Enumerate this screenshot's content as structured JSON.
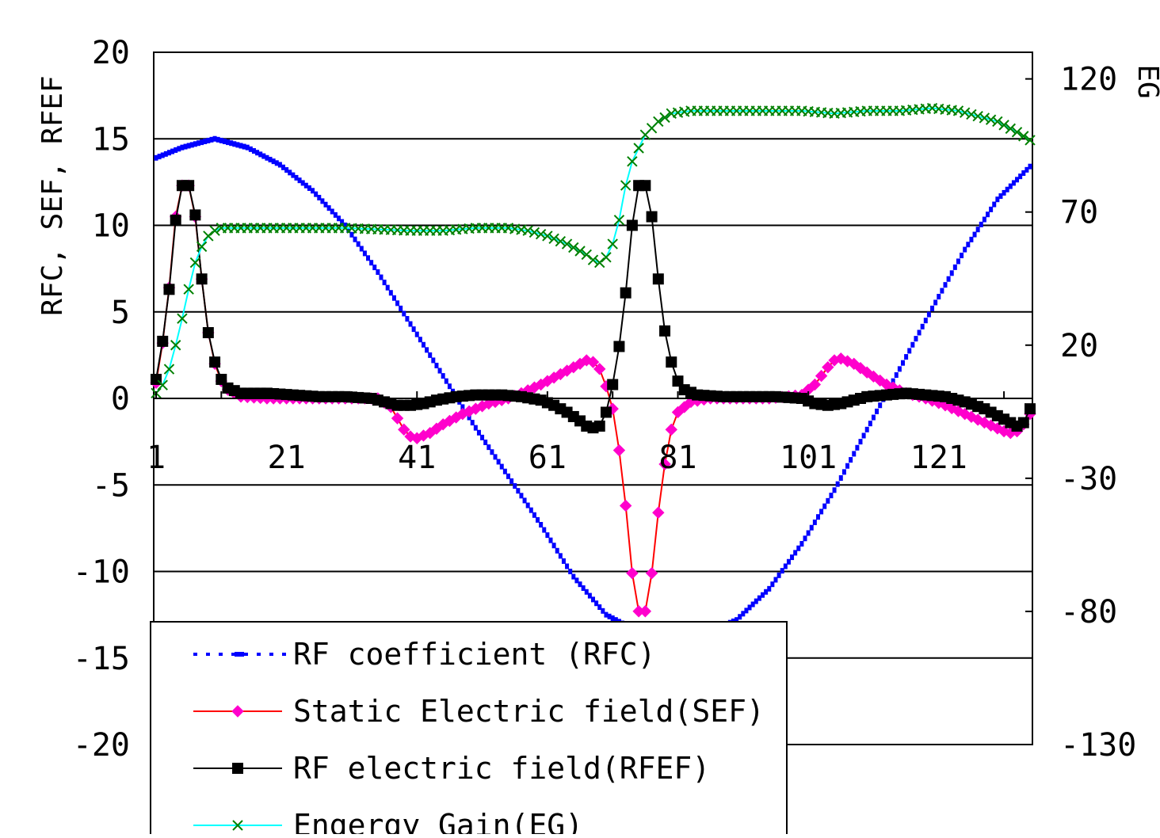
{
  "chart_data": {
    "type": "line",
    "title": "",
    "xlabel": "",
    "ylabel_left": "RFC, SEF, RFEF",
    "ylabel_right": "EG",
    "xlim": [
      1,
      135
    ],
    "ylim_left": [
      -20,
      20
    ],
    "ylim_right": [
      -130,
      130
    ],
    "x_ticks": [
      "1",
      "21",
      "41",
      "61",
      "81",
      "101",
      "121"
    ],
    "y_ticks_left": [
      "20",
      "15",
      "10",
      "5",
      "0",
      "-5",
      "-10",
      "-15",
      "-20"
    ],
    "y_ticks_right": [
      "120",
      "70",
      "20",
      "-30",
      "-80",
      "-130"
    ],
    "grid": "horizontal",
    "legend_position": "bottom-left",
    "series": [
      {
        "name": "RF coefficient (RFC)",
        "axis": "left",
        "color": "#0000ff",
        "style": "dotted",
        "points": [
          [
            1,
            13.9
          ],
          [
            5,
            14.5
          ],
          [
            10,
            15.0
          ],
          [
            15,
            14.5
          ],
          [
            20,
            13.5
          ],
          [
            25,
            12.0
          ],
          [
            30,
            10.0
          ],
          [
            35,
            7.3
          ],
          [
            40,
            4.3
          ],
          [
            45,
            1.3
          ],
          [
            50,
            -1.7
          ],
          [
            55,
            -4.5
          ],
          [
            60,
            -7.3
          ],
          [
            65,
            -10.3
          ],
          [
            70,
            -12.5
          ],
          [
            75,
            -13.5
          ],
          [
            80,
            -13.9
          ],
          [
            85,
            -13.6
          ],
          [
            90,
            -12.8
          ],
          [
            95,
            -11.0
          ],
          [
            100,
            -8.4
          ],
          [
            105,
            -5.3
          ],
          [
            110,
            -1.8
          ],
          [
            115,
            1.7
          ],
          [
            120,
            5.2
          ],
          [
            125,
            8.6
          ],
          [
            130,
            11.5
          ],
          [
            135,
            13.4
          ]
        ]
      },
      {
        "name": "Static Electric field(SEF)",
        "axis": "left",
        "color": "#ff0000",
        "marker_color": "#ff00cc",
        "style": "solid",
        "marker": "diamond",
        "points": [
          [
            1,
            0.9
          ],
          [
            2,
            3.2
          ],
          [
            3,
            6.4
          ],
          [
            4,
            10.5
          ],
          [
            5,
            12.3
          ],
          [
            6,
            12.3
          ],
          [
            7,
            10.5
          ],
          [
            8,
            6.9
          ],
          [
            9,
            3.8
          ],
          [
            10,
            2.0
          ],
          [
            11,
            1.0
          ],
          [
            12,
            0.5
          ],
          [
            14,
            0.1
          ],
          [
            18,
            0
          ],
          [
            25,
            0
          ],
          [
            30,
            0
          ],
          [
            35,
            0
          ],
          [
            37,
            -0.5
          ],
          [
            39,
            -1.8
          ],
          [
            40,
            -2.2
          ],
          [
            41,
            -2.3
          ],
          [
            43,
            -2.0
          ],
          [
            45,
            -1.5
          ],
          [
            48,
            -0.9
          ],
          [
            52,
            -0.3
          ],
          [
            55,
            0
          ],
          [
            57,
            0.3
          ],
          [
            60,
            0.8
          ],
          [
            63,
            1.4
          ],
          [
            66,
            2.0
          ],
          [
            67,
            2.2
          ],
          [
            68,
            2.1
          ],
          [
            69,
            1.7
          ],
          [
            70,
            0.7
          ],
          [
            71,
            -0.6
          ],
          [
            72,
            -3.0
          ],
          [
            73,
            -6.2
          ],
          [
            74,
            -10.1
          ],
          [
            75,
            -12.3
          ],
          [
            76,
            -12.3
          ],
          [
            77,
            -10.1
          ],
          [
            78,
            -6.6
          ],
          [
            79,
            -3.8
          ],
          [
            80,
            -1.8
          ],
          [
            81,
            -0.8
          ],
          [
            83,
            -0.2
          ],
          [
            86,
            0
          ],
          [
            90,
            0
          ],
          [
            95,
            0
          ],
          [
            100,
            0.2
          ],
          [
            102,
            0.8
          ],
          [
            104,
            1.8
          ],
          [
            105,
            2.2
          ],
          [
            106,
            2.3
          ],
          [
            108,
            2.0
          ],
          [
            110,
            1.5
          ],
          [
            113,
            0.8
          ],
          [
            116,
            0.3
          ],
          [
            119,
            0
          ],
          [
            122,
            -0.4
          ],
          [
            125,
            -0.9
          ],
          [
            128,
            -1.4
          ],
          [
            131,
            -1.9
          ],
          [
            132,
            -2.0
          ],
          [
            133,
            -1.9
          ],
          [
            134,
            -1.5
          ],
          [
            135,
            -0.9
          ]
        ]
      },
      {
        "name": "RF electric field(RFEF)",
        "axis": "left",
        "color": "#000000",
        "style": "solid",
        "marker": "square",
        "points": [
          [
            1,
            1.1
          ],
          [
            2,
            3.3
          ],
          [
            3,
            6.3
          ],
          [
            4,
            10.3
          ],
          [
            5,
            12.3
          ],
          [
            6,
            12.3
          ],
          [
            7,
            10.6
          ],
          [
            8,
            6.9
          ],
          [
            9,
            3.8
          ],
          [
            10,
            2.1
          ],
          [
            11,
            1.1
          ],
          [
            12,
            0.6
          ],
          [
            14,
            0.3
          ],
          [
            18,
            0.3
          ],
          [
            22,
            0.2
          ],
          [
            26,
            0.1
          ],
          [
            30,
            0.1
          ],
          [
            34,
            0
          ],
          [
            36,
            -0.2
          ],
          [
            38,
            -0.4
          ],
          [
            40,
            -0.4
          ],
          [
            42,
            -0.3
          ],
          [
            44,
            -0.1
          ],
          [
            47,
            0.1
          ],
          [
            50,
            0.2
          ],
          [
            54,
            0.2
          ],
          [
            57,
            0.1
          ],
          [
            60,
            -0.1
          ],
          [
            62,
            -0.4
          ],
          [
            64,
            -0.8
          ],
          [
            66,
            -1.3
          ],
          [
            67,
            -1.6
          ],
          [
            68,
            -1.7
          ],
          [
            69,
            -1.6
          ],
          [
            70,
            -0.8
          ],
          [
            71,
            0.8
          ],
          [
            72,
            3.0
          ],
          [
            73,
            6.1
          ],
          [
            74,
            10.0
          ],
          [
            75,
            12.3
          ],
          [
            76,
            12.3
          ],
          [
            77,
            10.5
          ],
          [
            78,
            6.9
          ],
          [
            79,
            3.9
          ],
          [
            80,
            2.1
          ],
          [
            81,
            1.0
          ],
          [
            82,
            0.5
          ],
          [
            84,
            0.2
          ],
          [
            88,
            0.1
          ],
          [
            92,
            0.1
          ],
          [
            96,
            0.1
          ],
          [
            100,
            0
          ],
          [
            102,
            -0.3
          ],
          [
            104,
            -0.4
          ],
          [
            106,
            -0.3
          ],
          [
            108,
            -0.1
          ],
          [
            110,
            0.1
          ],
          [
            113,
            0.2
          ],
          [
            116,
            0.3
          ],
          [
            119,
            0.2
          ],
          [
            122,
            0.1
          ],
          [
            125,
            -0.2
          ],
          [
            128,
            -0.6
          ],
          [
            131,
            -1.2
          ],
          [
            133,
            -1.6
          ],
          [
            134,
            -1.4
          ],
          [
            135,
            -0.6
          ]
        ]
      },
      {
        "name": "Engergy Gain(EG)",
        "axis": "right",
        "color": "#00ffff",
        "marker_color": "#008000",
        "style": "solid",
        "marker": "x",
        "points": [
          [
            1,
            2
          ],
          [
            2,
            5
          ],
          [
            3,
            11
          ],
          [
            4,
            20
          ],
          [
            5,
            30
          ],
          [
            6,
            41
          ],
          [
            7,
            51
          ],
          [
            8,
            57
          ],
          [
            9,
            61
          ],
          [
            10,
            63
          ],
          [
            11,
            64
          ],
          [
            13,
            64
          ],
          [
            20,
            64
          ],
          [
            30,
            64
          ],
          [
            40,
            63
          ],
          [
            45,
            63
          ],
          [
            50,
            64
          ],
          [
            55,
            64
          ],
          [
            58,
            63
          ],
          [
            61,
            61
          ],
          [
            64,
            58
          ],
          [
            67,
            54
          ],
          [
            68,
            52
          ],
          [
            69,
            51
          ],
          [
            70,
            53
          ],
          [
            71,
            58
          ],
          [
            72,
            67
          ],
          [
            73,
            80
          ],
          [
            74,
            89
          ],
          [
            75,
            94
          ],
          [
            76,
            99
          ],
          [
            78,
            104
          ],
          [
            80,
            107
          ],
          [
            83,
            108
          ],
          [
            90,
            108
          ],
          [
            100,
            108
          ],
          [
            105,
            107
          ],
          [
            110,
            108
          ],
          [
            115,
            108
          ],
          [
            120,
            109
          ],
          [
            124,
            108
          ],
          [
            127,
            106
          ],
          [
            130,
            104
          ],
          [
            133,
            100
          ],
          [
            135,
            97
          ]
        ]
      }
    ]
  }
}
